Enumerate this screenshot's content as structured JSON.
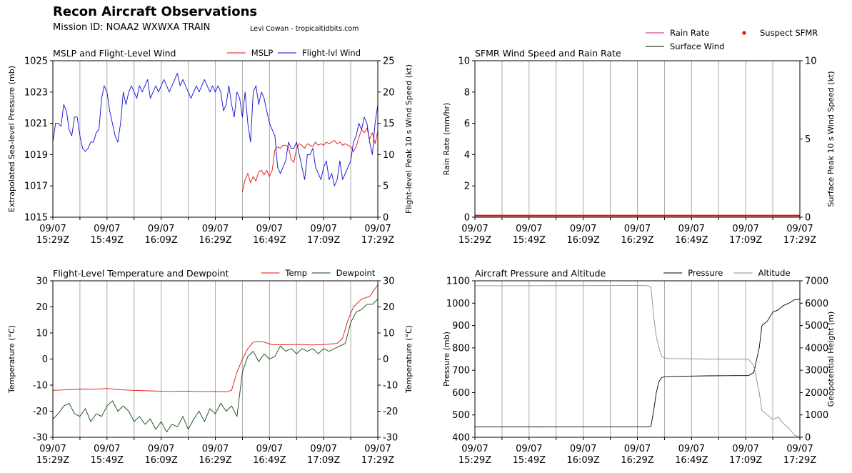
{
  "header": {
    "title": "Recon Aircraft Observations",
    "mission": "Mission ID: NOAA2 WXWXA TRAIN",
    "credit": "Levi Cowan - tropicaltidbits.com"
  },
  "chart_data": [
    {
      "type": "line",
      "title": "MSLP and Flight-Level Wind",
      "x_ticks": [
        "09/07\n15:29Z",
        "09/07\n15:49Z",
        "09/07\n16:09Z",
        "09/07\n16:29Z",
        "09/07\n16:49Z",
        "09/07\n17:09Z",
        "09/07\n17:29Z"
      ],
      "xlim": [
        "15:29",
        "17:29"
      ],
      "grid_x": true,
      "legend": "top-right",
      "left_axis": {
        "ylabel": "Extrapolated Sea-level Pressure (mb)",
        "ylim": [
          1015,
          1025
        ],
        "ticks": [
          1015,
          1017,
          1019,
          1021,
          1023,
          1025
        ]
      },
      "right_axis": {
        "ylabel": "Flight-level Peak 10 s Wind Speed (kt)",
        "ylim": [
          0,
          25
        ],
        "ticks": [
          0,
          5,
          10,
          15,
          20,
          25
        ]
      },
      "series": [
        {
          "name": "MSLP",
          "color": "#e3120b",
          "axis": "left",
          "x": [
            "16:39",
            "16:40",
            "16:41",
            "16:42",
            "16:43",
            "16:44",
            "16:45",
            "16:46",
            "16:47",
            "16:48",
            "16:49",
            "16:50",
            "16:51",
            "16:52",
            "16:53",
            "16:54",
            "16:55",
            "16:56",
            "16:57",
            "16:58",
            "16:59",
            "17:00",
            "17:01",
            "17:02",
            "17:03",
            "17:04",
            "17:05",
            "17:06",
            "17:07",
            "17:08",
            "17:09",
            "17:10",
            "17:11",
            "17:12",
            "17:13",
            "17:14",
            "17:15",
            "17:16",
            "17:17",
            "17:18",
            "17:19",
            "17:20",
            "17:21",
            "17:22",
            "17:23",
            "17:24",
            "17:25",
            "17:26",
            "17:27",
            "17:28",
            "17:29"
          ],
          "values": [
            1016.6,
            1017.4,
            1017.8,
            1017.2,
            1017.6,
            1017.3,
            1017.9,
            1018.0,
            1017.7,
            1018.0,
            1017.6,
            1018.0,
            1019.3,
            1019.5,
            1019.4,
            1019.6,
            1019.6,
            1019.5,
            1018.7,
            1018.5,
            1019.4,
            1019.7,
            1019.6,
            1019.4,
            1019.7,
            1019.6,
            1019.5,
            1019.8,
            1019.6,
            1019.7,
            1019.6,
            1019.8,
            1019.7,
            1019.8,
            1019.9,
            1019.7,
            1019.8,
            1019.6,
            1019.7,
            1019.6,
            1019.5,
            1019.2,
            1019.5,
            1020.1,
            1020.6,
            1020.4,
            1020.7,
            1020.0,
            1020.4,
            1019.7,
            1020.5
          ]
        },
        {
          "name": "Flight-lvl Wind",
          "color": "#0b0bd9",
          "axis": "right",
          "x": [
            "15:29",
            "15:30",
            "15:31",
            "15:32",
            "15:33",
            "15:34",
            "15:35",
            "15:36",
            "15:37",
            "15:38",
            "15:39",
            "15:40",
            "15:41",
            "15:42",
            "15:43",
            "15:44",
            "15:45",
            "15:46",
            "15:47",
            "15:48",
            "15:49",
            "15:50",
            "15:51",
            "15:52",
            "15:53",
            "15:54",
            "15:55",
            "15:56",
            "15:57",
            "15:58",
            "15:59",
            "16:00",
            "16:01",
            "16:02",
            "16:03",
            "16:04",
            "16:05",
            "16:06",
            "16:07",
            "16:08",
            "16:09",
            "16:10",
            "16:11",
            "16:12",
            "16:13",
            "16:14",
            "16:15",
            "16:16",
            "16:17",
            "16:18",
            "16:19",
            "16:20",
            "16:21",
            "16:22",
            "16:23",
            "16:24",
            "16:25",
            "16:26",
            "16:27",
            "16:28",
            "16:29",
            "16:30",
            "16:31",
            "16:32",
            "16:33",
            "16:34",
            "16:35",
            "16:36",
            "16:37",
            "16:38",
            "16:39",
            "16:40",
            "16:41",
            "16:42",
            "16:43",
            "16:44",
            "16:45",
            "16:46",
            "16:47",
            "16:48",
            "16:49",
            "16:50",
            "16:51",
            "16:52",
            "16:53",
            "16:54",
            "16:55",
            "16:56",
            "16:57",
            "16:58",
            "16:59",
            "17:00",
            "17:01",
            "17:02",
            "17:03",
            "17:04",
            "17:05",
            "17:06",
            "17:07",
            "17:08",
            "17:09",
            "17:10",
            "17:11",
            "17:12",
            "17:13",
            "17:14",
            "17:15",
            "17:16",
            "17:17",
            "17:18",
            "17:19",
            "17:20",
            "17:21",
            "17:22",
            "17:23",
            "17:24",
            "17:25",
            "17:26",
            "17:27",
            "17:28",
            "17:29"
          ],
          "values": [
            12,
            15,
            15,
            14.5,
            18,
            17,
            14,
            13,
            16,
            16,
            13,
            11,
            10.5,
            11,
            12,
            12,
            13.5,
            14,
            19,
            21,
            20,
            17,
            15,
            13,
            12,
            15,
            20,
            18,
            20,
            21,
            20,
            19,
            21,
            20,
            21,
            22,
            19,
            20,
            21,
            20,
            21,
            22,
            21,
            20,
            21,
            22,
            23,
            21,
            22,
            21,
            20,
            19,
            20,
            21,
            20,
            21,
            22,
            21,
            20,
            21,
            20,
            21,
            20,
            17,
            18,
            21,
            18,
            16,
            20,
            19,
            16,
            20,
            15,
            12,
            20,
            21,
            18,
            20,
            19,
            17,
            15,
            14,
            13,
            8,
            7,
            8,
            9,
            12,
            11,
            11,
            12,
            10,
            8,
            6,
            10,
            10,
            11,
            8,
            7,
            6,
            8,
            9,
            6,
            7,
            5,
            6,
            9,
            6,
            7,
            8,
            9,
            12,
            13,
            15,
            14,
            16,
            15,
            12,
            10,
            15,
            18
          ]
        }
      ]
    },
    {
      "type": "line",
      "title": "SFMR Wind Speed and Rain Rate",
      "x_ticks": [
        "09/07\n15:29Z",
        "09/07\n15:49Z",
        "09/07\n16:09Z",
        "09/07\n16:29Z",
        "09/07\n16:49Z",
        "09/07\n17:09Z",
        "09/07\n17:29Z"
      ],
      "xlim": [
        "15:29",
        "17:29"
      ],
      "grid_x": true,
      "legend": "above-right",
      "left_axis": {
        "ylabel": "Rain Rate (mm/hr)",
        "ylim": [
          0,
          10
        ],
        "ticks": [
          0,
          2,
          4,
          6,
          8,
          10
        ]
      },
      "right_axis": {
        "ylabel": "Surface Peak 10 s Wind Speed (kt)",
        "ylim": [
          0,
          10
        ],
        "ticks": [
          0,
          5,
          10
        ]
      },
      "series": [
        {
          "name": "Rain Rate",
          "color": "#d4178f",
          "axis": "left",
          "x": [
            "15:29",
            "17:29"
          ],
          "values": [
            0.1,
            0.1
          ]
        },
        {
          "name": "Surface Wind",
          "color": "#000000",
          "axis": "right",
          "x": [
            "15:29",
            "17:29"
          ],
          "values": [
            0.1,
            0.1
          ]
        },
        {
          "name": "Suspect SFMR",
          "color": "#e3120b",
          "axis": "right",
          "marker": "dot",
          "x": [
            "15:29",
            "17:29"
          ],
          "values": [
            0.1,
            0.1
          ]
        }
      ]
    },
    {
      "type": "line",
      "title": "Flight-Level Temperature and Dewpoint",
      "x_ticks": [
        "09/07\n15:29Z",
        "09/07\n15:49Z",
        "09/07\n16:09Z",
        "09/07\n16:29Z",
        "09/07\n16:49Z",
        "09/07\n17:09Z",
        "09/07\n17:29Z"
      ],
      "xlim": [
        "15:29",
        "17:29"
      ],
      "grid_x": true,
      "legend": "top-right",
      "left_axis": {
        "ylabel": "Temperature ($^\\circ C$)",
        "ylim": [
          -30,
          30
        ],
        "ticks": [
          -30,
          -20,
          -10,
          0,
          10,
          20,
          30
        ]
      },
      "right_axis": {
        "ylabel": "Temperature ($^\\circ C$)",
        "ylim": [
          -30,
          30
        ],
        "ticks": [
          -30,
          -20,
          -10,
          0,
          10,
          20,
          30
        ]
      },
      "series": [
        {
          "name": "Temp",
          "color": "#e3120b",
          "axis": "left",
          "x": [
            "15:29",
            "15:34",
            "15:39",
            "15:44",
            "15:49",
            "15:54",
            "15:59",
            "16:04",
            "16:09",
            "16:14",
            "16:19",
            "16:24",
            "16:29",
            "16:33",
            "16:35",
            "16:37",
            "16:39",
            "16:41",
            "16:43",
            "16:45",
            "16:47",
            "16:50",
            "16:55",
            "17:00",
            "17:05",
            "17:10",
            "17:12",
            "17:14",
            "17:16",
            "17:18",
            "17:20",
            "17:23",
            "17:26",
            "17:29"
          ],
          "values": [
            -12,
            -11.8,
            -11.5,
            -11.6,
            -11.3,
            -11.8,
            -12,
            -12.2,
            -12.3,
            -12.4,
            -12.3,
            -12.5,
            -12.4,
            -12.6,
            -12,
            -5,
            0,
            4,
            6.5,
            6.8,
            6.5,
            5.5,
            5.5,
            5.6,
            5.4,
            5.6,
            5.8,
            6,
            8,
            15,
            20,
            23,
            24,
            28.5
          ]
        },
        {
          "name": "Dewpoint",
          "color": "#0d4a0d",
          "axis": "left",
          "x": [
            "15:29",
            "15:31",
            "15:33",
            "15:35",
            "15:37",
            "15:39",
            "15:41",
            "15:43",
            "15:45",
            "15:47",
            "15:49",
            "15:51",
            "15:53",
            "15:55",
            "15:57",
            "15:59",
            "16:01",
            "16:03",
            "16:05",
            "16:07",
            "16:09",
            "16:11",
            "16:13",
            "16:15",
            "16:17",
            "16:19",
            "16:21",
            "16:23",
            "16:25",
            "16:27",
            "16:29",
            "16:31",
            "16:33",
            "16:35",
            "16:37",
            "16:39",
            "16:41",
            "16:43",
            "16:45",
            "16:47",
            "16:49",
            "16:51",
            "16:53",
            "16:55",
            "16:57",
            "16:59",
            "17:01",
            "17:03",
            "17:05",
            "17:07",
            "17:09",
            "17:11",
            "17:13",
            "17:15",
            "17:17",
            "17:19",
            "17:21",
            "17:23",
            "17:25",
            "17:27",
            "17:29"
          ],
          "values": [
            -23,
            -21,
            -18,
            -17,
            -21,
            -22,
            -19,
            -24,
            -21,
            -22,
            -18,
            -16,
            -20,
            -18,
            -20,
            -24,
            -22,
            -25,
            -23,
            -27,
            -24,
            -28,
            -25,
            -26,
            -22,
            -27,
            -23,
            -20,
            -24,
            -19,
            -21,
            -17,
            -20,
            -18,
            -22,
            -5,
            1,
            3,
            -1,
            2,
            0,
            1,
            5,
            3,
            4,
            2,
            4,
            3,
            4,
            2,
            4,
            3,
            4,
            5,
            6,
            14,
            18,
            19,
            21,
            21,
            23
          ]
        }
      ]
    },
    {
      "type": "line",
      "title": "Aircraft Pressure and Altitude",
      "x_ticks": [
        "09/07\n15:29Z",
        "09/07\n15:49Z",
        "09/07\n16:09Z",
        "09/07\n16:29Z",
        "09/07\n16:49Z",
        "09/07\n17:09Z",
        "09/07\n17:29Z"
      ],
      "xlim": [
        "15:29",
        "17:29"
      ],
      "grid_x": true,
      "legend": "top-right",
      "left_axis": {
        "ylabel": "Pressure (mb)",
        "ylim": [
          400,
          1100
        ],
        "ticks": [
          400,
          500,
          600,
          700,
          800,
          900,
          1000,
          1100
        ]
      },
      "right_axis": {
        "ylabel": "Geopotential Height (m)",
        "ylim": [
          0,
          7000
        ],
        "ticks": [
          0,
          1000,
          2000,
          3000,
          4000,
          5000,
          6000,
          7000
        ]
      },
      "series": [
        {
          "name": "Pressure",
          "color": "#000000",
          "axis": "left",
          "x": [
            "15:29",
            "15:49",
            "16:09",
            "16:29",
            "16:33",
            "16:34",
            "16:35",
            "16:36",
            "16:37",
            "16:38",
            "16:40",
            "16:45",
            "16:55",
            "17:05",
            "17:10",
            "17:12",
            "17:14",
            "17:15",
            "17:17",
            "17:19",
            "17:21",
            "17:23",
            "17:25",
            "17:27",
            "17:29"
          ],
          "values": [
            446,
            446,
            447,
            447,
            447,
            449,
            520,
            600,
            650,
            668,
            672,
            673,
            675,
            676,
            676,
            690,
            800,
            900,
            920,
            960,
            970,
            990,
            1000,
            1015,
            1018
          ]
        },
        {
          "name": "Altitude",
          "color": "#8c8c8c",
          "axis": "right",
          "x": [
            "15:29",
            "15:49",
            "16:09",
            "16:29",
            "16:33",
            "16:34",
            "16:35",
            "16:36",
            "16:37",
            "16:38",
            "16:40",
            "16:45",
            "16:55",
            "17:05",
            "17:10",
            "17:12",
            "17:14",
            "17:15",
            "17:17",
            "17:19",
            "17:21",
            "17:23",
            "17:25",
            "17:27",
            "17:29"
          ],
          "values": [
            6780,
            6780,
            6785,
            6790,
            6780,
            6700,
            5400,
            4500,
            4000,
            3600,
            3520,
            3520,
            3500,
            3500,
            3500,
            3200,
            2000,
            1200,
            1000,
            800,
            900,
            600,
            400,
            100,
            0
          ]
        }
      ]
    }
  ]
}
